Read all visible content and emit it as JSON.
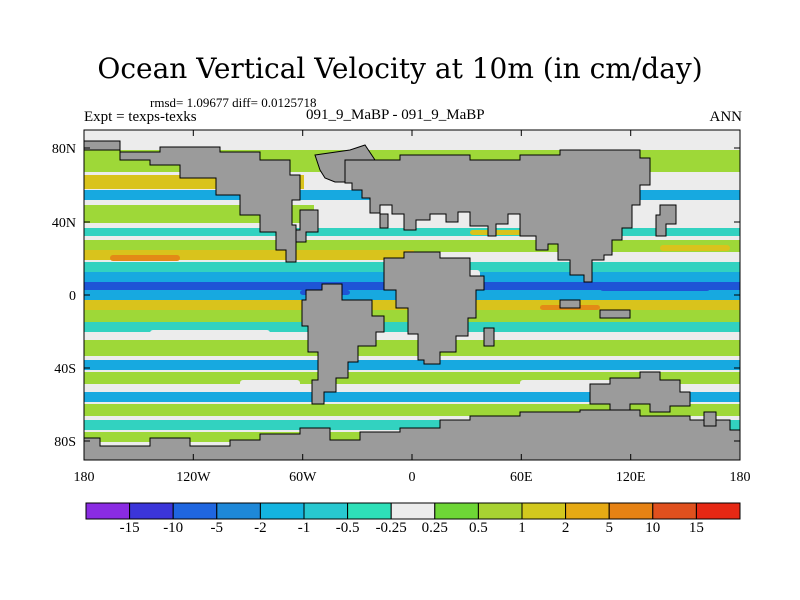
{
  "title": "Ocean Vertical Velocity at 10m (in cm/day)",
  "stats": "rmsd= 1.09677  diff= 0.0125718",
  "expt_label": "Expt = texps-texks",
  "runs_label": "091_9_MaBP - 091_9_MaBP",
  "season_label": "ANN",
  "lat_ticks": [
    "80N",
    "40N",
    "0",
    "40S",
    "80S"
  ],
  "lon_ticks": [
    "180",
    "120W",
    "60W",
    "0",
    "60E",
    "120E",
    "180"
  ],
  "colorbar": {
    "labels": [
      "-15",
      "-10",
      "-5",
      "-2",
      "-1",
      "-0.5",
      "-0.25",
      "0.25",
      "0.5",
      "1",
      "2",
      "5",
      "10",
      "15"
    ],
    "colors": [
      "#8a2be2",
      "#3b35d9",
      "#1f66e0",
      "#1e88d8",
      "#14b4e0",
      "#28c8d0",
      "#2ee0b8",
      "#ececec",
      "#6ed636",
      "#a8d232",
      "#d2c81e",
      "#e6aa14",
      "#e68214",
      "#e0501e",
      "#e62814"
    ]
  },
  "colors": {
    "land": "#9b9b9b",
    "neutral": "#ececec",
    "up_weak": "#9ed838",
    "up_mod": "#d9c31c",
    "up_strong": "#e38a16",
    "down_weak": "#32d2c0",
    "down_mod": "#17a9e0",
    "down_strong": "#1e55d6"
  }
}
